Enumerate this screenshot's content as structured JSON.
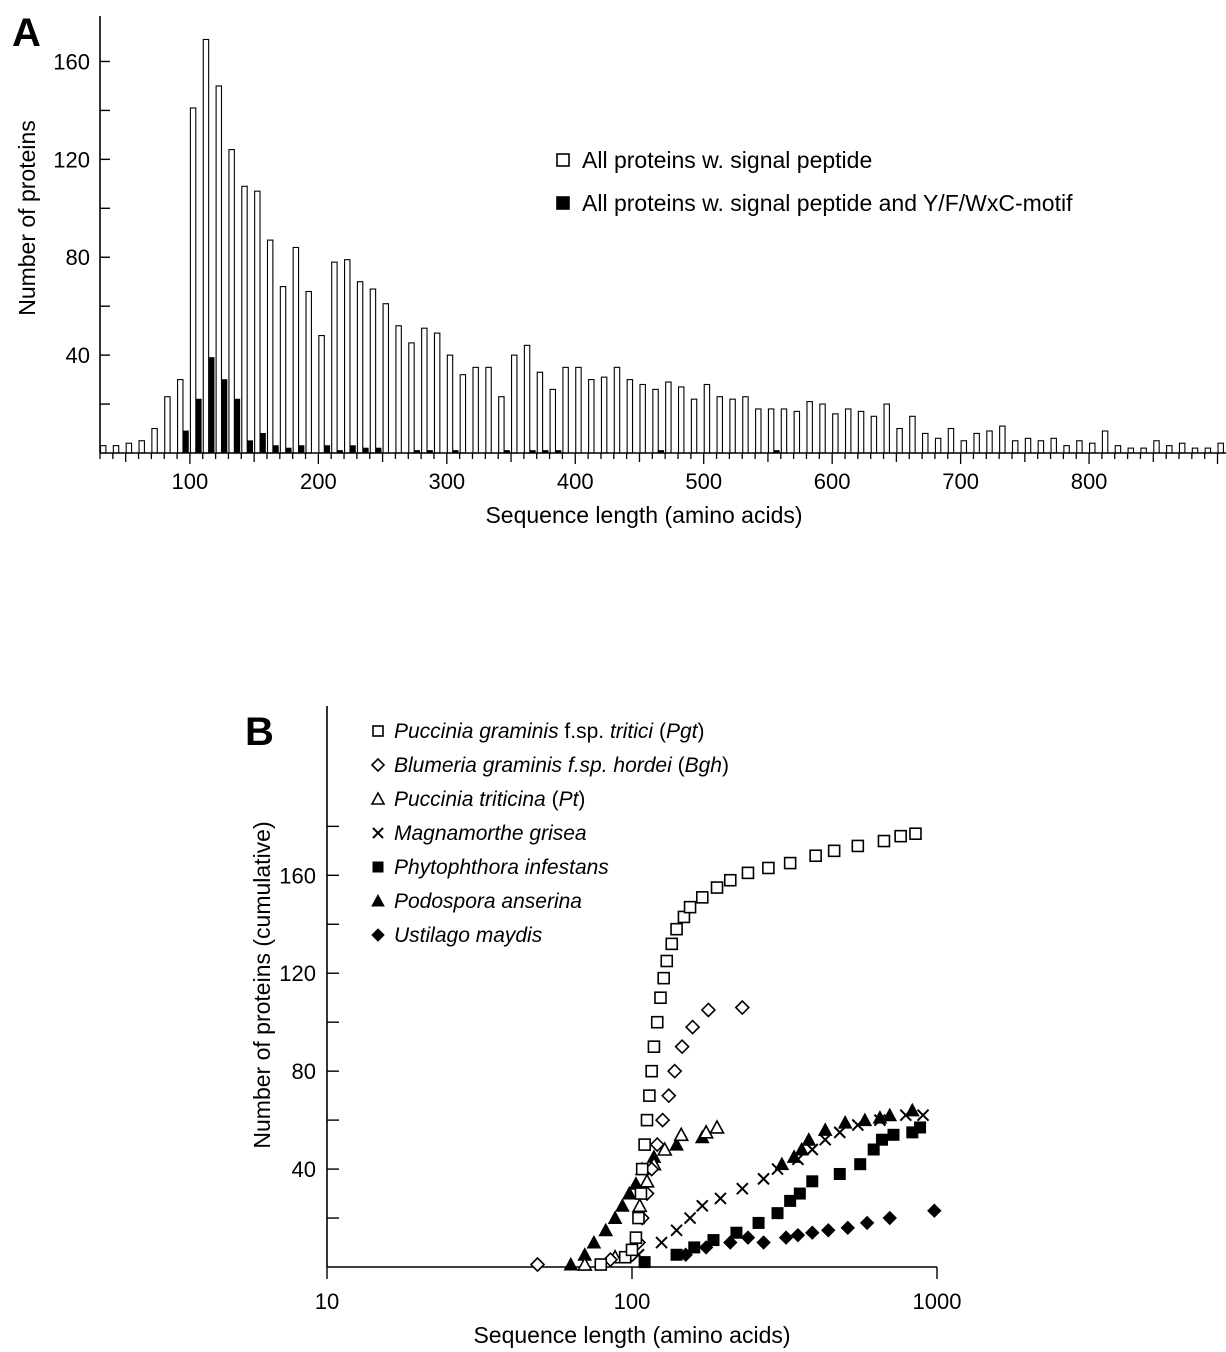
{
  "chart_data": [
    {
      "panel": "A",
      "type": "bar",
      "xlabel": "Sequence length (amino acids)",
      "ylabel": "Number of proteins",
      "x_ticks": [
        100,
        200,
        300,
        400,
        500,
        600,
        700,
        800
      ],
      "y_ticks": [
        40,
        80,
        120,
        160
      ],
      "ylim": [
        0,
        175
      ],
      "legend_position": "upper-right",
      "bin_start": 30,
      "bin_width": 10,
      "series": [
        {
          "name": "All proteins w. signal peptide",
          "fill": "#ffffff",
          "values": [
            3,
            3,
            4,
            5,
            10,
            23,
            30,
            141,
            169,
            150,
            124,
            109,
            107,
            87,
            68,
            84,
            66,
            48,
            78,
            79,
            70,
            67,
            61,
            52,
            45,
            51,
            49,
            40,
            32,
            35,
            35,
            23,
            40,
            44,
            33,
            26,
            35,
            35,
            30,
            31,
            35,
            30,
            28,
            26,
            29,
            27,
            22,
            28,
            23,
            22,
            23,
            18,
            18,
            18,
            17,
            21,
            20,
            16,
            18,
            17,
            15,
            20,
            10,
            15,
            8,
            6,
            10,
            5,
            8,
            9,
            11,
            5,
            6,
            5,
            6,
            3,
            5,
            4,
            9,
            3,
            2,
            2,
            5,
            3,
            4,
            2,
            2,
            4,
            7,
            6,
            5,
            3,
            5,
            2,
            4
          ]
        },
        {
          "name": "All proteins w. signal peptide and Y/F/WxC-motif",
          "fill": "#000000",
          "values": [
            0,
            0,
            0,
            0,
            0,
            0,
            9,
            22,
            39,
            30,
            22,
            5,
            8,
            3,
            2,
            3,
            0,
            3,
            1,
            3,
            2,
            2,
            0,
            0,
            1,
            1,
            0,
            1,
            0,
            0,
            0,
            1,
            0,
            1,
            1,
            1,
            0,
            0,
            0,
            0,
            0,
            0,
            0,
            1,
            0,
            0,
            0,
            0,
            0,
            0,
            0,
            0,
            1,
            0,
            0,
            0,
            0,
            0,
            0,
            0,
            0,
            0,
            0,
            0,
            0,
            0,
            0,
            0,
            0,
            0,
            0,
            0,
            0,
            0,
            0,
            0,
            0,
            0,
            0,
            0,
            0,
            0,
            0,
            0,
            0,
            0,
            0,
            0,
            0,
            0,
            0,
            0,
            0,
            0,
            0
          ]
        }
      ]
    },
    {
      "panel": "B",
      "type": "scatter",
      "xlabel": "Sequence length (amino acids)",
      "ylabel": "Number of proteins (cumulative)",
      "x_scale": "log",
      "xlim": [
        10,
        1000
      ],
      "x_tick_labels": [
        "10",
        "100",
        "1000"
      ],
      "ylim": [
        0,
        190
      ],
      "y_ticks": [
        40,
        80,
        120,
        160
      ],
      "legend_position": "upper-left",
      "series": [
        {
          "name_parts": [
            [
              "Puccinia graminis",
              true
            ],
            [
              " f.sp. ",
              false
            ],
            [
              "tritici",
              true
            ],
            [
              " (",
              false
            ],
            [
              "Pgt",
              true
            ],
            [
              ")",
              false
            ]
          ],
          "marker": "open-square",
          "points": [
            [
              79,
              1
            ],
            [
              95,
              4
            ],
            [
              100,
              7
            ],
            [
              103,
              12
            ],
            [
              105,
              20
            ],
            [
              107,
              30
            ],
            [
              108,
              40
            ],
            [
              110,
              50
            ],
            [
              112,
              60
            ],
            [
              114,
              70
            ],
            [
              116,
              80
            ],
            [
              118,
              90
            ],
            [
              121,
              100
            ],
            [
              124,
              110
            ],
            [
              127,
              118
            ],
            [
              130,
              125
            ],
            [
              135,
              132
            ],
            [
              140,
              138
            ],
            [
              148,
              143
            ],
            [
              155,
              147
            ],
            [
              170,
              151
            ],
            [
              190,
              155
            ],
            [
              210,
              158
            ],
            [
              240,
              161
            ],
            [
              280,
              163
            ],
            [
              330,
              165
            ],
            [
              400,
              168
            ],
            [
              460,
              170
            ],
            [
              550,
              172
            ],
            [
              670,
              174
            ],
            [
              760,
              176
            ],
            [
              850,
              177
            ]
          ]
        },
        {
          "name_parts": [
            [
              "Blumeria graminis f.sp. hordei",
              true
            ],
            [
              " (",
              false
            ],
            [
              "Bgh",
              true
            ],
            [
              ")",
              false
            ]
          ],
          "marker": "open-diamond",
          "points": [
            [
              49,
              1
            ],
            [
              85,
              3
            ],
            [
              100,
              5
            ],
            [
              105,
              10
            ],
            [
              108,
              20
            ],
            [
              112,
              30
            ],
            [
              116,
              40
            ],
            [
              121,
              50
            ],
            [
              126,
              60
            ],
            [
              132,
              70
            ],
            [
              138,
              80
            ],
            [
              146,
              90
            ],
            [
              158,
              98
            ],
            [
              178,
              105
            ],
            [
              230,
              106
            ]
          ]
        },
        {
          "name_parts": [
            [
              "Puccinia triticina",
              true
            ],
            [
              " (",
              false
            ],
            [
              "Pt",
              true
            ],
            [
              ")",
              false
            ]
          ],
          "marker": "open-triangle",
          "points": [
            [
              70,
              1
            ],
            [
              88,
              4
            ],
            [
              106,
              25
            ],
            [
              112,
              35
            ],
            [
              118,
              42
            ],
            [
              128,
              48
            ],
            [
              145,
              54
            ],
            [
              175,
              55
            ],
            [
              190,
              57
            ]
          ]
        },
        {
          "name_parts": [
            [
              "Magnamorthe grisea",
              true
            ]
          ],
          "marker": "cross",
          "points": [
            [
              105,
              5
            ],
            [
              125,
              10
            ],
            [
              140,
              15
            ],
            [
              155,
              20
            ],
            [
              170,
              25
            ],
            [
              195,
              28
            ],
            [
              230,
              32
            ],
            [
              270,
              36
            ],
            [
              300,
              40
            ],
            [
              350,
              44
            ],
            [
              390,
              48
            ],
            [
              430,
              52
            ],
            [
              480,
              55
            ],
            [
              550,
              58
            ],
            [
              650,
              60
            ],
            [
              790,
              62
            ],
            [
              900,
              62
            ]
          ]
        },
        {
          "name_parts": [
            [
              "Phytophthora infestans",
              true
            ]
          ],
          "marker": "filled-square",
          "points": [
            [
              110,
              2
            ],
            [
              140,
              5
            ],
            [
              160,
              8
            ],
            [
              185,
              11
            ],
            [
              220,
              14
            ],
            [
              260,
              18
            ],
            [
              300,
              22
            ],
            [
              330,
              27
            ],
            [
              355,
              30
            ],
            [
              390,
              35
            ],
            [
              480,
              38
            ],
            [
              560,
              42
            ],
            [
              620,
              48
            ],
            [
              660,
              52
            ],
            [
              720,
              54
            ],
            [
              830,
              55
            ],
            [
              880,
              57
            ]
          ]
        },
        {
          "name_parts": [
            [
              "Podospora anserina",
              true
            ]
          ],
          "marker": "filled-triangle",
          "points": [
            [
              63,
              1
            ],
            [
              70,
              5
            ],
            [
              75,
              10
            ],
            [
              82,
              15
            ],
            [
              88,
              20
            ],
            [
              93,
              25
            ],
            [
              98,
              30
            ],
            [
              103,
              34
            ],
            [
              108,
              40
            ],
            [
              118,
              45
            ],
            [
              140,
              50
            ],
            [
              170,
              53
            ],
            [
              310,
              42
            ],
            [
              340,
              45
            ],
            [
              360,
              48
            ],
            [
              380,
              52
            ],
            [
              430,
              56
            ],
            [
              500,
              59
            ],
            [
              580,
              60
            ],
            [
              650,
              61
            ],
            [
              700,
              62
            ],
            [
              830,
              64
            ]
          ]
        },
        {
          "name_parts": [
            [
              "Ustilago maydis",
              true
            ]
          ],
          "marker": "filled-diamond",
          "points": [
            [
              150,
              5
            ],
            [
              175,
              8
            ],
            [
              210,
              10
            ],
            [
              240,
              12
            ],
            [
              270,
              10
            ],
            [
              320,
              12
            ],
            [
              350,
              13
            ],
            [
              390,
              14
            ],
            [
              440,
              15
            ],
            [
              510,
              16
            ],
            [
              590,
              18
            ],
            [
              700,
              20
            ],
            [
              980,
              23
            ]
          ]
        }
      ]
    }
  ]
}
